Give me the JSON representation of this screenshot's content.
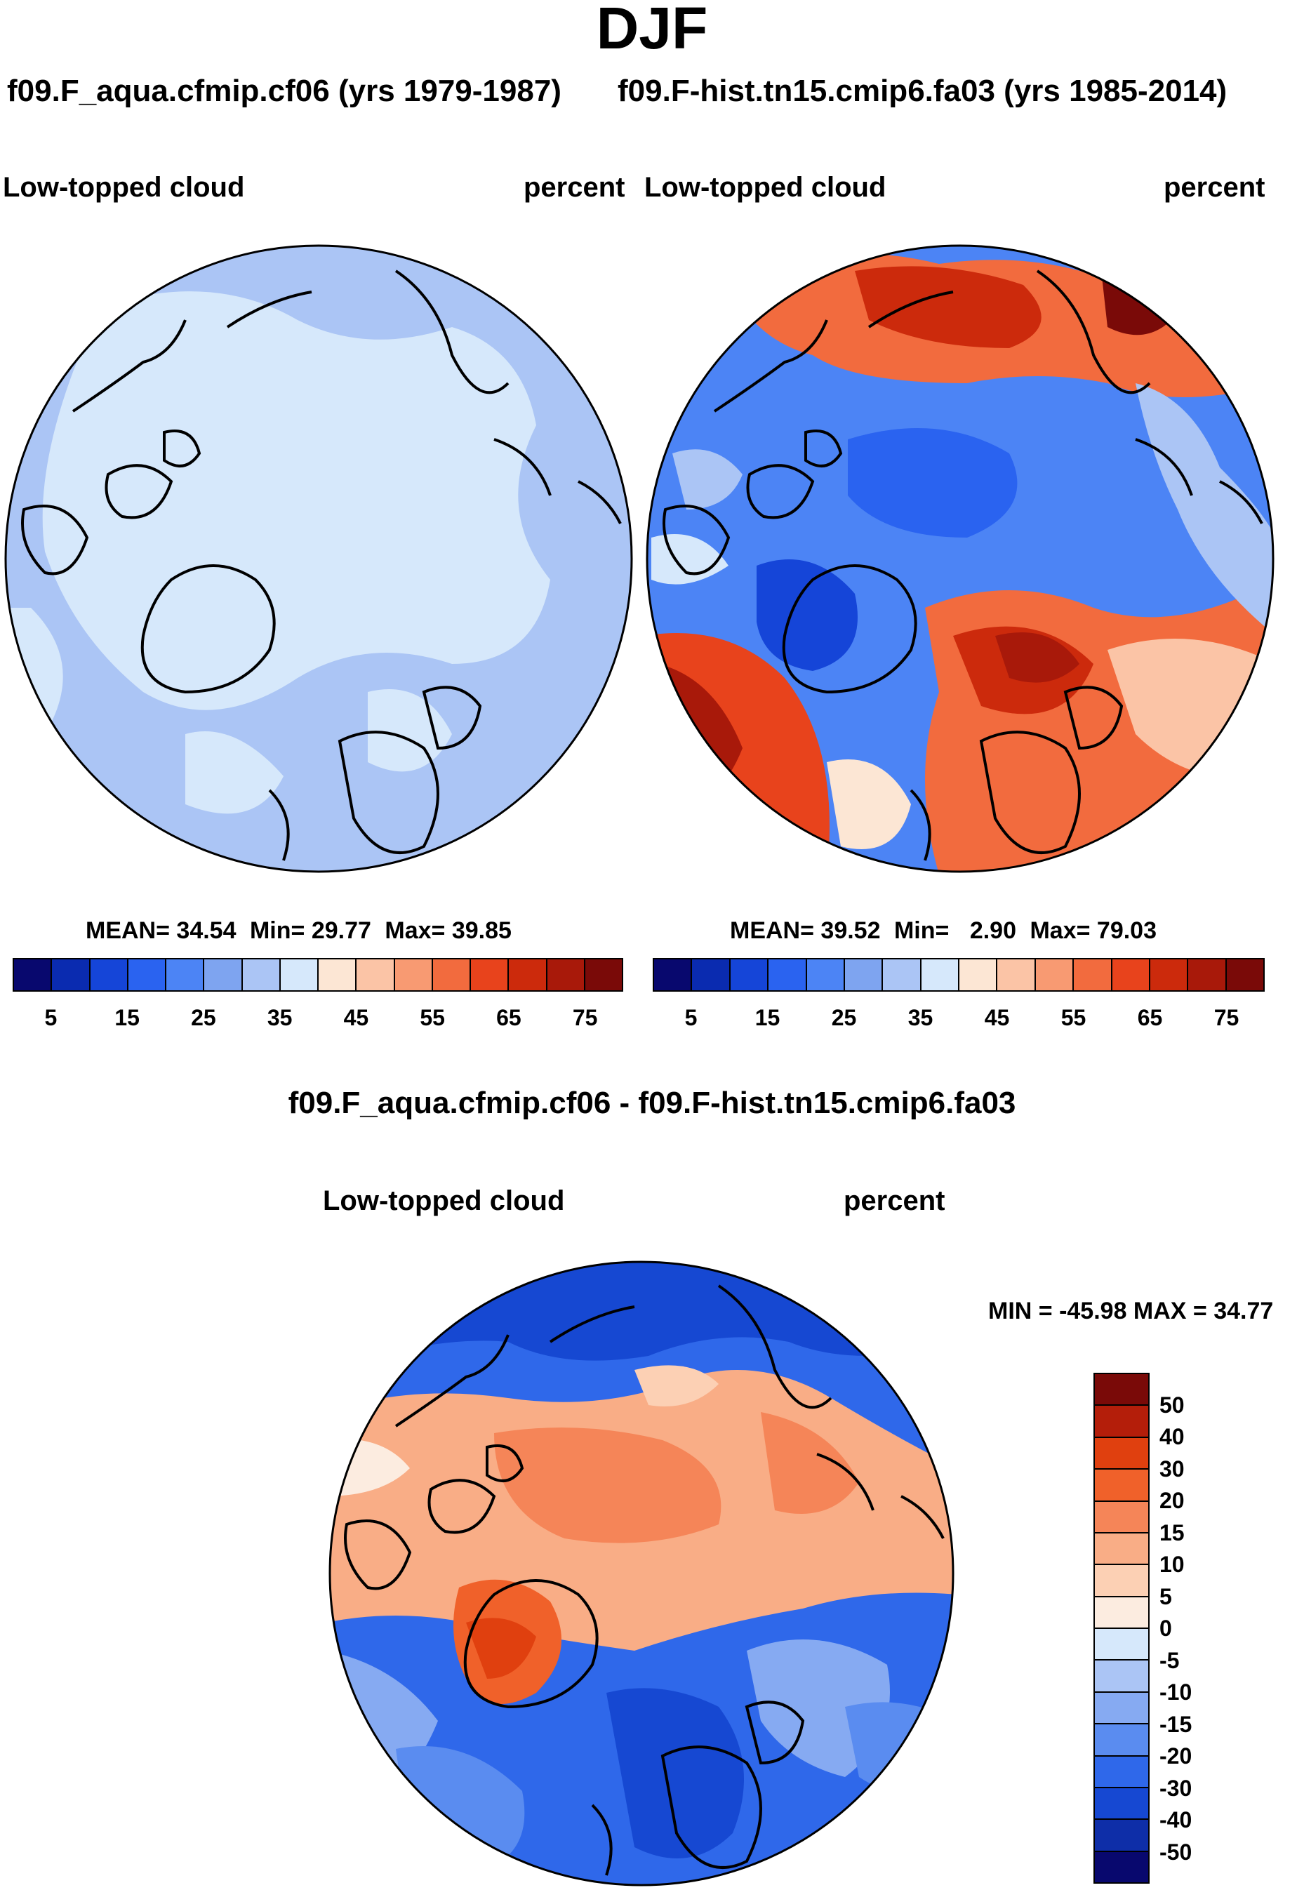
{
  "title": "DJF",
  "panel_left": {
    "case_title": "f09.F_aqua.cfmip.cf06 (yrs 1979-1987)",
    "var_label": "Low-topped cloud",
    "units": "percent",
    "stats": {
      "mean_label": "MEAN=",
      "mean": "34.54",
      "min_label": "Min=",
      "min": "29.77",
      "max_label": "Max=",
      "max": "39.85"
    }
  },
  "panel_right": {
    "case_title": "f09.F-hist.tn15.cmip6.fa03 (yrs 1985-2014)",
    "var_label": "Low-topped cloud",
    "units": "percent",
    "stats": {
      "mean_label": "MEAN=",
      "mean": "39.52",
      "min_label": "Min=",
      "min": "2.90",
      "max_label": "Max=",
      "max": "79.03"
    }
  },
  "panel_diff": {
    "title": "f09.F_aqua.cfmip.cf06 - f09.F-hist.tn15.cmip6.fa03",
    "var_label": "Low-topped cloud",
    "units": "percent",
    "minmax": "MIN = -45.98 MAX =  34.77"
  },
  "colorbar_top": {
    "colors": [
      "#08086e",
      "#0a2bb0",
      "#1545d8",
      "#2a63f0",
      "#4c84f5",
      "#7ea4f0",
      "#abc5f5",
      "#d6e8fb",
      "#fce6d4",
      "#fbc4a6",
      "#f89a72",
      "#f26b3e",
      "#e8431c",
      "#cc2a0c",
      "#a8190a",
      "#7a0a08"
    ],
    "tick_labels": [
      "5",
      "15",
      "25",
      "35",
      "45",
      "55",
      "65",
      "75"
    ]
  },
  "colorbar_diff": {
    "colors": [
      "#7a0a08",
      "#b41e0a",
      "#e0400f",
      "#f0612a",
      "#f58558",
      "#f9ad86",
      "#fcd0b4",
      "#fcece0",
      "#d6e8fb",
      "#abc5f5",
      "#86aaf2",
      "#5a8cf0",
      "#2f68ea",
      "#1648d2",
      "#0e2ea8",
      "#08086e"
    ],
    "tick_labels": [
      "50",
      "40",
      "30",
      "20",
      "15",
      "10",
      "5",
      "0",
      "-5",
      "-10",
      "-15",
      "-20",
      "-30",
      "-40",
      "-50"
    ]
  },
  "chart_data": [
    {
      "type": "heatmap",
      "projection": "north polar stereographic",
      "season": "DJF",
      "title": "f09.F_aqua.cfmip.cf06 (yrs 1979-1987)",
      "variable": "Low-topped cloud",
      "units": "percent",
      "mean": 34.54,
      "min": 29.77,
      "max": 39.85,
      "contour_levels": [
        5,
        10,
        15,
        20,
        25,
        30,
        35,
        40,
        45,
        50,
        55,
        60,
        65,
        70,
        75
      ]
    },
    {
      "type": "heatmap",
      "projection": "north polar stereographic",
      "season": "DJF",
      "title": "f09.F-hist.tn15.cmip6.fa03 (yrs 1985-2014)",
      "variable": "Low-topped cloud",
      "units": "percent",
      "mean": 39.52,
      "min": 2.9,
      "max": 79.03,
      "contour_levels": [
        5,
        10,
        15,
        20,
        25,
        30,
        35,
        40,
        45,
        50,
        55,
        60,
        65,
        70,
        75
      ]
    },
    {
      "type": "heatmap",
      "projection": "north polar stereographic",
      "season": "DJF",
      "title": "f09.F_aqua.cfmip.cf06 - f09.F-hist.tn15.cmip6.fa03",
      "variable": "Low-topped cloud",
      "units": "percent",
      "min": -45.98,
      "max": 34.77,
      "contour_levels": [
        -50,
        -40,
        -30,
        -20,
        -15,
        -10,
        -5,
        0,
        5,
        10,
        15,
        20,
        30,
        40,
        50
      ]
    }
  ]
}
